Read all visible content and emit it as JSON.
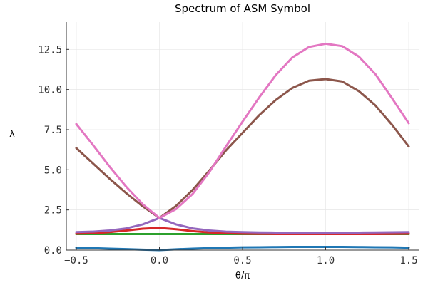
{
  "chart_data": {
    "type": "line",
    "title": "Spectrum of ASM Symbol",
    "xlabel": "θ/π",
    "ylabel": "λ",
    "xlim": [
      -0.56,
      1.56
    ],
    "ylim": [
      0,
      14.2
    ],
    "xticks": [
      -0.5,
      0.0,
      0.5,
      1.0,
      1.5
    ],
    "xtick_labels": [
      "−0.5",
      "0.0",
      "0.5",
      "1.0",
      "1.5"
    ],
    "yticks": [
      0,
      2.5,
      5.0,
      7.5,
      10.0,
      12.5
    ],
    "ytick_labels": [
      "0.0",
      "2.5",
      "5.0",
      "7.5",
      "10.0",
      "12.5"
    ],
    "grid": true,
    "legend": "none",
    "x": [
      -0.5,
      -0.4,
      -0.3,
      -0.2,
      -0.1,
      0.0,
      0.1,
      0.2,
      0.3,
      0.4,
      0.5,
      0.6,
      0.7,
      0.8,
      0.9,
      1.0,
      1.1,
      1.2,
      1.3,
      1.4,
      1.5
    ],
    "series": [
      {
        "color": "#1f77b4",
        "values": [
          0.15,
          0.12,
          0.09,
          0.06,
          0.03,
          0.0,
          0.05,
          0.09,
          0.12,
          0.15,
          0.17,
          0.18,
          0.19,
          0.2,
          0.2,
          0.2,
          0.2,
          0.19,
          0.18,
          0.17,
          0.15
        ]
      },
      {
        "color": "#2ca02c",
        "values": [
          1.0,
          1.0,
          1.0,
          1.0,
          1.0,
          1.0,
          1.0,
          1.0,
          1.0,
          1.0,
          1.0,
          1.0,
          1.0,
          1.0,
          1.0,
          1.0,
          1.0,
          1.0,
          1.0,
          1.0,
          1.0
        ]
      },
      {
        "color": "#d62728",
        "values": [
          1.02,
          1.05,
          1.12,
          1.22,
          1.33,
          1.38,
          1.3,
          1.18,
          1.1,
          1.05,
          1.02,
          1.01,
          1.0,
          1.0,
          1.0,
          1.0,
          1.0,
          1.0,
          1.0,
          1.01,
          1.02
        ]
      },
      {
        "color": "#9467bd",
        "values": [
          1.12,
          1.15,
          1.22,
          1.35,
          1.6,
          2.0,
          1.6,
          1.35,
          1.22,
          1.15,
          1.12,
          1.1,
          1.09,
          1.08,
          1.08,
          1.08,
          1.08,
          1.09,
          1.1,
          1.11,
          1.12
        ]
      },
      {
        "color": "#8c564b",
        "values": [
          6.35,
          5.4,
          4.45,
          3.55,
          2.72,
          2.0,
          2.75,
          3.75,
          4.95,
          6.2,
          7.3,
          8.4,
          9.35,
          10.1,
          10.55,
          10.65,
          10.5,
          9.9,
          9.0,
          7.8,
          6.45
        ]
      },
      {
        "color": "#e377c2",
        "values": [
          7.85,
          6.55,
          5.2,
          3.95,
          2.85,
          2.0,
          2.55,
          3.5,
          4.85,
          6.45,
          8.0,
          9.5,
          10.9,
          12.0,
          12.65,
          12.85,
          12.7,
          12.05,
          10.95,
          9.45,
          7.9
        ]
      }
    ]
  }
}
